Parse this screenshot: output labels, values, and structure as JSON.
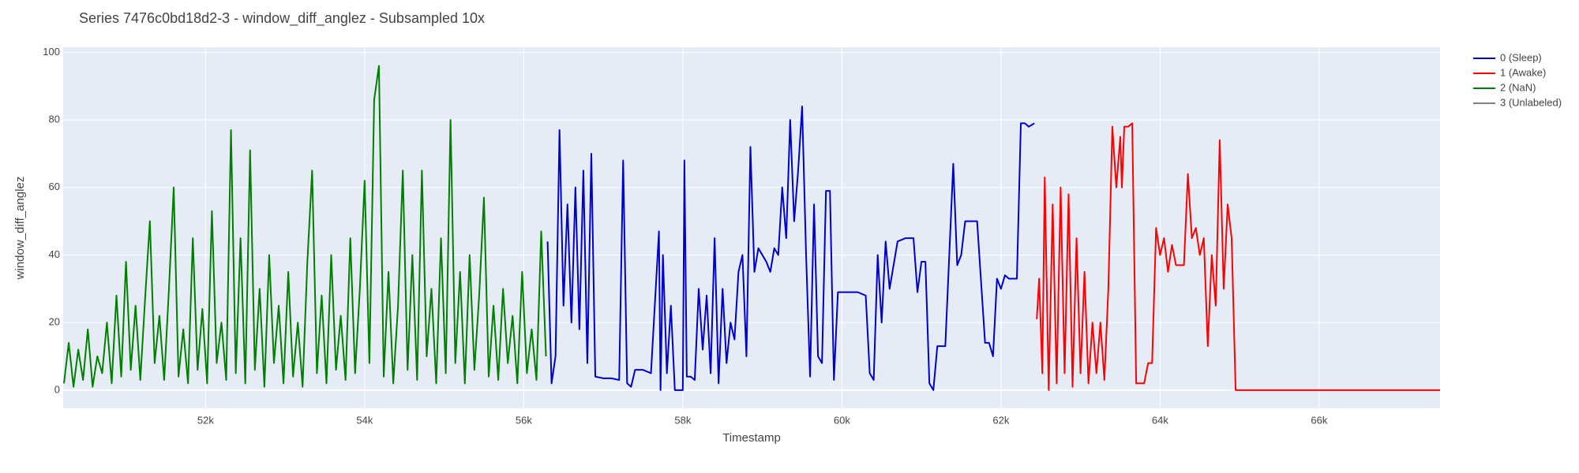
{
  "chart_data": {
    "type": "line",
    "title": "Series 7476c0bd18d2-3 - window_diff_anglez - Subsampled 10x",
    "x_label": "Timestamp",
    "y_label": "window_diff_anglez",
    "xlim": [
      50210,
      67520
    ],
    "ylim": [
      -5.4,
      101.5
    ],
    "xticks": [
      {
        "value": 52000,
        "label": "52k"
      },
      {
        "value": 54000,
        "label": "54k"
      },
      {
        "value": 56000,
        "label": "56k"
      },
      {
        "value": 58000,
        "label": "58k"
      },
      {
        "value": 60000,
        "label": "60k"
      },
      {
        "value": 62000,
        "label": "62k"
      },
      {
        "value": 64000,
        "label": "64k"
      },
      {
        "value": 66000,
        "label": "66k"
      }
    ],
    "yticks": [
      0,
      20,
      40,
      60,
      80,
      100
    ],
    "grid": true,
    "legend": "right",
    "series": [
      {
        "name": "0 (Sleep)",
        "color": "#0000cc",
        "x": [
          56300,
          56350,
          56400,
          56450,
          56500,
          56550,
          56600,
          56650,
          56700,
          56750,
          56800,
          56850,
          56900,
          57000,
          57100,
          57200,
          57250,
          57300,
          57350,
          57400,
          57500,
          57600,
          57700,
          57720,
          57750,
          57800,
          57850,
          57900,
          58000,
          58020,
          58050,
          58100,
          58150,
          58200,
          58250,
          58300,
          58350,
          58400,
          58450,
          58500,
          58550,
          58600,
          58650,
          58700,
          58750,
          58800,
          58850,
          58900,
          58950,
          59000,
          59050,
          59100,
          59150,
          59200,
          59250,
          59300,
          59350,
          59400,
          59450,
          59500,
          59550,
          59600,
          59650,
          59700,
          59750,
          59800,
          59850,
          59900,
          59950,
          60000,
          60100,
          60200,
          60300,
          60350,
          60400,
          60450,
          60500,
          60550,
          60600,
          60700,
          60800,
          60900,
          60950,
          61000,
          61050,
          61100,
          61150,
          61200,
          61250,
          61300,
          61400,
          61450,
          61500,
          61550,
          61600,
          61700,
          61800,
          61850,
          61900,
          61950,
          62000,
          62050,
          62100,
          62150,
          62200,
          62250,
          62300,
          62350,
          62420
        ],
        "values": [
          44,
          2,
          10,
          77,
          25,
          55,
          20,
          60,
          18,
          65,
          8,
          70,
          4,
          3.5,
          3.5,
          3,
          68,
          2,
          1,
          6,
          6,
          5,
          47,
          0,
          40,
          5,
          25,
          0,
          0,
          68,
          4,
          4,
          3,
          30,
          12,
          28,
          5,
          45,
          2,
          30,
          8,
          20,
          15,
          35,
          40,
          10,
          72,
          35,
          42,
          40,
          38,
          35,
          42,
          40,
          60,
          45,
          80,
          50,
          65,
          84,
          40,
          4,
          55,
          10,
          8,
          59,
          59,
          3,
          29,
          29,
          29,
          29,
          28,
          5,
          3,
          40,
          20,
          44,
          30,
          44,
          45,
          45,
          29,
          38,
          38,
          2,
          0,
          13,
          13,
          13,
          67,
          37,
          40,
          50,
          50,
          50,
          14,
          14,
          10,
          33,
          30,
          34,
          33,
          33,
          33,
          79,
          79,
          78,
          79
        ]
      },
      {
        "name": "1 (Awake)",
        "color": "#ff0000",
        "x": [
          62450,
          62480,
          62520,
          62550,
          62600,
          62650,
          62700,
          62750,
          62800,
          62850,
          62900,
          62950,
          63000,
          63050,
          63100,
          63150,
          63200,
          63250,
          63300,
          63350,
          63400,
          63450,
          63500,
          63520,
          63550,
          63600,
          63650,
          63700,
          63800,
          63850,
          63900,
          63950,
          64000,
          64050,
          64100,
          64150,
          64200,
          64300,
          64350,
          64400,
          64450,
          64500,
          64550,
          64600,
          64650,
          64700,
          64750,
          64800,
          64850,
          64900,
          64950,
          65000,
          67520
        ],
        "values": [
          21,
          33,
          5,
          63,
          0,
          55,
          2,
          60,
          5,
          58,
          1,
          45,
          5,
          35,
          2,
          20,
          5,
          20,
          3,
          30,
          78,
          60,
          75,
          60,
          78,
          78,
          79,
          2,
          2,
          8,
          8,
          48,
          40,
          45,
          35,
          43,
          37,
          37,
          64,
          45,
          48,
          40,
          45,
          13,
          40,
          25,
          74,
          30,
          55,
          45,
          0,
          0,
          0
        ]
      },
      {
        "name": "2 (NaN)",
        "color": "#008000",
        "x": [
          50220,
          50280,
          50340,
          50400,
          50460,
          50520,
          50580,
          50640,
          50700,
          50760,
          50820,
          50880,
          50940,
          51000,
          51060,
          51120,
          51180,
          51240,
          51300,
          51360,
          51420,
          51480,
          51540,
          51600,
          51660,
          51720,
          51780,
          51840,
          51900,
          51960,
          52020,
          52080,
          52140,
          52200,
          52260,
          52320,
          52380,
          52440,
          52500,
          52560,
          52620,
          52680,
          52740,
          52800,
          52860,
          52920,
          52980,
          53040,
          53100,
          53160,
          53220,
          53280,
          53340,
          53400,
          53460,
          53520,
          53580,
          53640,
          53700,
          53760,
          53820,
          53880,
          53940,
          54000,
          54060,
          54120,
          54180,
          54240,
          54300,
          54360,
          54420,
          54480,
          54540,
          54600,
          54660,
          54720,
          54780,
          54840,
          54900,
          54960,
          55020,
          55080,
          55140,
          55200,
          55260,
          55320,
          55380,
          55440,
          55500,
          55560,
          55620,
          55680,
          55740,
          55800,
          55860,
          55920,
          55980,
          56040,
          56100,
          56160,
          56220,
          56280
        ],
        "values": [
          2,
          14,
          1,
          12,
          3,
          18,
          1,
          10,
          5,
          20,
          2,
          28,
          4,
          38,
          6,
          25,
          3,
          27,
          50,
          8,
          22,
          3,
          30,
          60,
          4,
          18,
          2,
          45,
          6,
          24,
          2,
          53,
          8,
          20,
          3,
          77,
          5,
          45,
          2,
          71,
          6,
          30,
          1,
          40,
          8,
          25,
          2,
          35,
          4,
          20,
          1,
          38,
          65,
          5,
          28,
          2,
          40,
          6,
          22,
          3,
          45,
          5,
          30,
          62,
          8,
          86,
          96,
          4,
          35,
          2,
          25,
          65,
          6,
          40,
          3,
          65,
          10,
          30,
          2,
          45,
          5,
          80,
          8,
          35,
          2,
          40,
          6,
          28,
          57,
          4,
          25,
          3,
          30,
          8,
          22,
          2,
          35,
          5,
          18,
          3,
          47,
          10
        ]
      },
      {
        "name": "3 (Unlabeled)",
        "color": "#808080",
        "x": [],
        "values": []
      }
    ]
  }
}
